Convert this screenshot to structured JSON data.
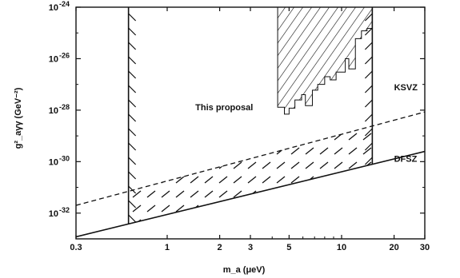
{
  "chart_data": {
    "type": "line",
    "title": "",
    "xlabel": "m_a (μeV)",
    "ylabel": "g²_aγγ (GeV⁻²)",
    "x_scale": "log",
    "y_scale": "log",
    "xlim": [
      0.3,
      30
    ],
    "ylim": [
      1e-33,
      1e-24
    ],
    "grid": false,
    "x_ticks": [
      {
        "value": 0.3,
        "label": "0.3"
      },
      {
        "value": 1,
        "label": "1"
      },
      {
        "value": 2,
        "label": "2"
      },
      {
        "value": 3,
        "label": "3"
      },
      {
        "value": 5,
        "label": "5"
      },
      {
        "value": 10,
        "label": "10"
      },
      {
        "value": 20,
        "label": "20"
      },
      {
        "value": 30,
        "label": "30"
      }
    ],
    "y_ticks": [
      {
        "value": 1e-24,
        "base": "10",
        "exp": "-24"
      },
      {
        "value": 1e-26,
        "base": "10",
        "exp": "-26"
      },
      {
        "value": 1e-28,
        "base": "10",
        "exp": "-28"
      },
      {
        "value": 1e-30,
        "base": "10",
        "exp": "-30"
      },
      {
        "value": 1e-32,
        "base": "10",
        "exp": "-32"
      }
    ],
    "series": [
      {
        "name": "KSVZ",
        "style": "dashed",
        "x": [
          0.3,
          30
        ],
        "y": [
          2e-32,
          8.5e-29
        ]
      },
      {
        "name": "DFSZ",
        "style": "solid",
        "x": [
          0.3,
          30
        ],
        "y": [
          1.2e-33,
          2.5e-30
        ]
      }
    ],
    "regions": [
      {
        "name": "This proposal",
        "x_range": [
          0.6,
          15
        ],
        "y_max": 1e-24,
        "lower_bound": "DFSZ"
      }
    ],
    "excluded_region": {
      "x": [
        4.3,
        4.3,
        4.7,
        4.7,
        5.0,
        5.0,
        5.4,
        5.4,
        5.9,
        5.9,
        6.2,
        6.2,
        6.8,
        6.8,
        7.3,
        7.3,
        8.0,
        8.0,
        8.6,
        8.6,
        9.3,
        9.3,
        10.5,
        10.5,
        11.0,
        11.0,
        12.0,
        12.0,
        13.0,
        13.0,
        14.0,
        14.0,
        15.0,
        15.0
      ],
      "y": [
        1e-24,
        1.3e-28,
        1.3e-28,
        7e-29,
        7e-29,
        1.2e-28,
        1.2e-28,
        2.5e-28,
        2.5e-28,
        4e-28,
        4e-28,
        1.5e-28,
        1.5e-28,
        6e-28,
        6e-28,
        1e-27,
        1e-27,
        2e-27,
        2e-27,
        1.5e-27,
        1.5e-27,
        3e-27,
        3e-27,
        1e-26,
        1e-26,
        4e-27,
        4e-27,
        6e-26,
        6e-26,
        1.2e-25,
        1.2e-25,
        1.5e-25,
        1.5e-25,
        1e-24
      ]
    },
    "annotations": [
      {
        "text": "This proposal",
        "x": 1.45,
        "y": 1e-28
      },
      {
        "text": "KSVZ",
        "x": 20,
        "y": 6e-28
      },
      {
        "text": "DFSZ",
        "x": 20,
        "y": 1e-30
      }
    ],
    "colors": {
      "ink": "#111111",
      "background": "#ffffff"
    }
  }
}
